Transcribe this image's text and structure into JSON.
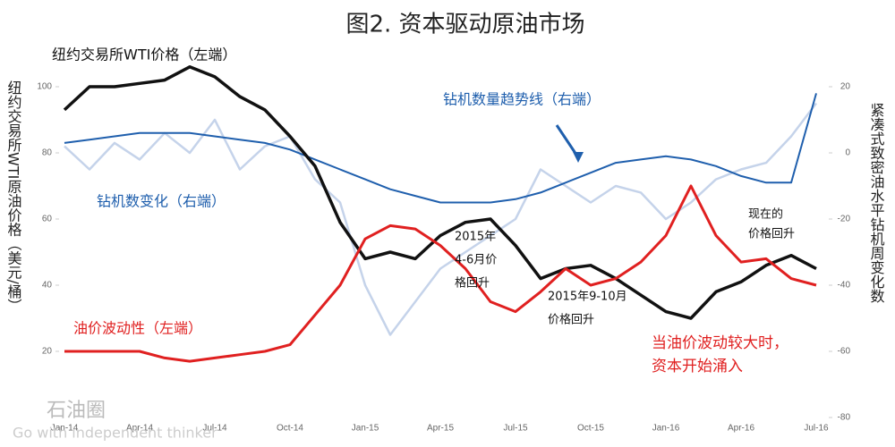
{
  "chart_data": {
    "type": "line",
    "title": "图2. 资本驱动原油市场",
    "y_label": "纽约交易所WTI原油价格（美元/桶）",
    "y2_label": "紧凑式致密油水平钻机周变化数",
    "categories": [
      "Jan-14",
      null,
      null,
      "Apr-14",
      null,
      null,
      "Jul-14",
      null,
      null,
      "Oct-14",
      null,
      null,
      "Jan-15",
      null,
      null,
      "Apr-15",
      null,
      null,
      "Jul-15",
      null,
      null,
      "Oct-15",
      null,
      null,
      "Jan-16",
      null,
      null,
      "Apr-16",
      null,
      null,
      "Jul-16"
    ],
    "ylim": [
      0,
      110
    ],
    "yticks": [
      20,
      40,
      60,
      80,
      100
    ],
    "y2lim": [
      -80,
      30
    ],
    "y2ticks": [
      -80,
      -60,
      -40,
      -20,
      0,
      20
    ],
    "series": [
      {
        "name": "钻机数变化（右端）",
        "color": "#c5d3ea",
        "axis": "y2",
        "values": [
          2,
          -5,
          3,
          -2,
          6,
          0,
          10,
          -5,
          2,
          5,
          -8,
          -15,
          -40,
          -55,
          -45,
          -35,
          -30,
          -25,
          -20,
          -5,
          -10,
          -15,
          -10,
          -12,
          -20,
          -15,
          -8,
          -5,
          -3,
          5,
          15
        ]
      },
      {
        "name": "钻机数量趋势线（右端）",
        "color": "#1f5fad",
        "axis": "y2",
        "values": [
          3,
          4,
          5,
          6,
          6,
          6,
          5,
          4,
          3,
          1,
          -2,
          -5,
          -8,
          -11,
          -13,
          -15,
          -15,
          -15,
          -14,
          -12,
          -9,
          -6,
          -3,
          -2,
          -1,
          -2,
          -4,
          -7,
          -9,
          -9,
          18
        ]
      },
      {
        "name": "纽约交易所WTI价格（左端）",
        "color": "#111111",
        "values": [
          93,
          100,
          100,
          101,
          102,
          106,
          103,
          97,
          93,
          85,
          76,
          59,
          48,
          50,
          48,
          55,
          59,
          60,
          52,
          42,
          45,
          46,
          42,
          37,
          32,
          30,
          38,
          41,
          46,
          49,
          45
        ]
      },
      {
        "name": "油价波动性（左端）",
        "color": "#e02020",
        "values": [
          20,
          20,
          20,
          20,
          18,
          17,
          18,
          19,
          20,
          22,
          31,
          40,
          54,
          58,
          57,
          52,
          45,
          35,
          32,
          38,
          45,
          40,
          42,
          47,
          55,
          70,
          55,
          47,
          48,
          42,
          40
        ]
      }
    ],
    "annotations": [
      [
        "2015年",
        "4-6月价",
        "格回升"
      ],
      [
        "2015年9-10月",
        "价格回升"
      ],
      [
        "现在的",
        "价格回升"
      ],
      [
        "当油价波动较大时，",
        "资本开始涌入"
      ]
    ],
    "watermark": [
      "石油圈",
      "Go with independent thinker"
    ]
  }
}
